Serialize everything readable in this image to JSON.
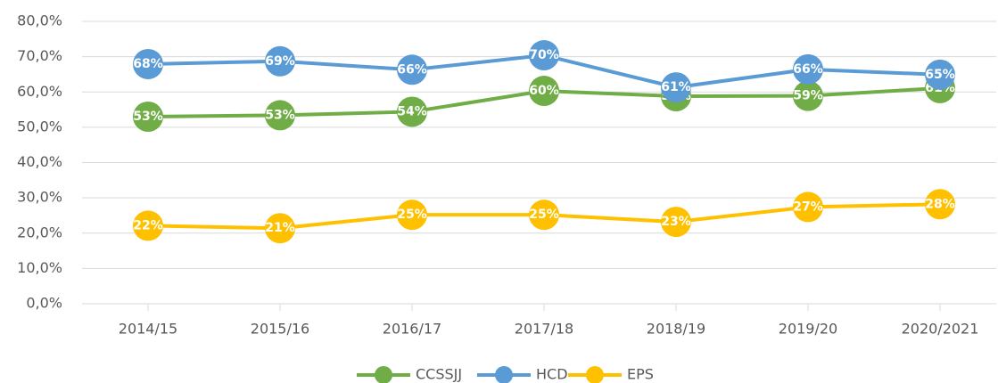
{
  "chart_data": {
    "type": "line",
    "categories": [
      "2014/15",
      "2015/16",
      "2016/17",
      "2017/18",
      "2018/19",
      "2019/20",
      "2020/2021"
    ],
    "series": [
      {
        "name": "CCSSJJ",
        "color": "#70ad47",
        "values": [
          53.0,
          53.4,
          54.4,
          60.3,
          58.8,
          58.9,
          61.1
        ],
        "value_labels": [
          "53%",
          "53%",
          "54%",
          "60%",
          "59%",
          "59%",
          "61%"
        ]
      },
      {
        "name": "HCD",
        "color": "#5b9bd5",
        "values": [
          67.9,
          68.7,
          66.3,
          70.4,
          61.3,
          66.4,
          64.9
        ],
        "value_labels": [
          "68%",
          "69%",
          "66%",
          "70%",
          "61%",
          "66%",
          "65%"
        ]
      },
      {
        "name": "EPS",
        "color": "#ffc000",
        "values": [
          22.1,
          21.4,
          25.2,
          25.2,
          23.2,
          27.4,
          28.2
        ],
        "value_labels": [
          "22%",
          "21%",
          "25%",
          "25%",
          "23%",
          "27%",
          "28%"
        ]
      }
    ],
    "ylim": [
      0,
      80
    ],
    "yticks": [
      {
        "value": 0,
        "label": "0,0%"
      },
      {
        "value": 10,
        "label": "10,0%"
      },
      {
        "value": 20,
        "label": "20,0%"
      },
      {
        "value": 30,
        "label": "30,0%"
      },
      {
        "value": 40,
        "label": "40,0%"
      },
      {
        "value": 50,
        "label": "50,0%"
      },
      {
        "value": 60,
        "label": "60,0%"
      },
      {
        "value": 70,
        "label": "70,0%"
      },
      {
        "value": 80,
        "label": "80,0%"
      }
    ],
    "grid": true,
    "legend": "bottom"
  }
}
